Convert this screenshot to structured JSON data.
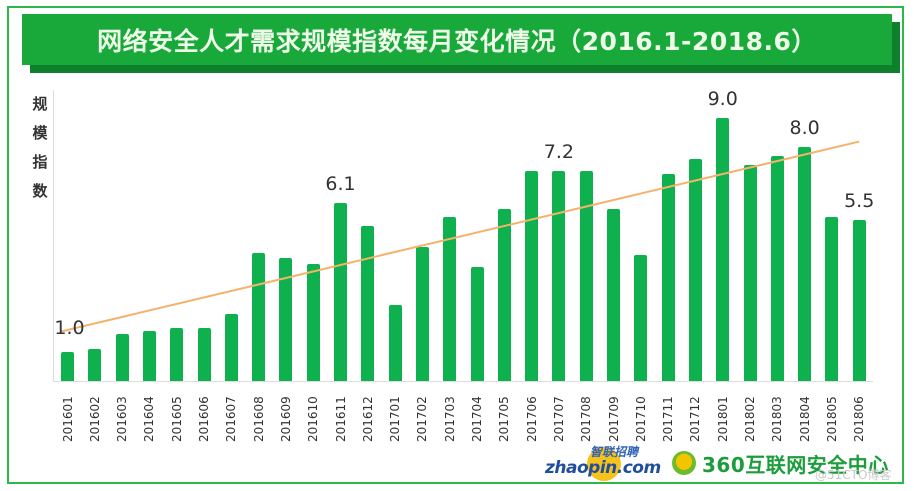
{
  "title": "网络安全人才需求规模指数每月变化情况（2016.1-2018.6）",
  "y_axis_label_chars": [
    "规",
    "模",
    "指",
    "数"
  ],
  "colors": {
    "bar": "#0fb14f",
    "trendline": "#f5b26b",
    "banner": "#18a93a",
    "banner_shadow": "#0e7f2a",
    "frame": "#2fb84a"
  },
  "logos": {
    "zhaopin_cn": "智联招聘",
    "zhaopin_en": "zhaopin.com",
    "center_360": "360互联网安全中心"
  },
  "watermark": "@51CTO博客",
  "chart_data": {
    "type": "bar",
    "title": "网络安全人才需求规模指数每月变化情况（2016.1-2018.6）",
    "xlabel": "",
    "ylabel": "规模指数",
    "ylim": [
      0,
      10
    ],
    "grid": false,
    "legend": null,
    "categories": [
      "201601",
      "201602",
      "201603",
      "201604",
      "201605",
      "201606",
      "201607",
      "201608",
      "201609",
      "201610",
      "201611",
      "201612",
      "201701",
      "201702",
      "201703",
      "201704",
      "201705",
      "201706",
      "201707",
      "201708",
      "201709",
      "201710",
      "201711",
      "201712",
      "201801",
      "201802",
      "201803",
      "201804",
      "201805",
      "201806"
    ],
    "values": [
      1.0,
      1.1,
      1.6,
      1.7,
      1.8,
      1.8,
      2.3,
      4.4,
      4.2,
      4.0,
      6.1,
      5.3,
      2.6,
      4.6,
      5.6,
      3.9,
      5.9,
      7.2,
      7.2,
      7.2,
      5.9,
      4.3,
      7.1,
      7.6,
      9.0,
      7.4,
      7.7,
      8.0,
      5.6,
      5.5
    ],
    "annotations": [
      {
        "category": "201601",
        "text": "1.0"
      },
      {
        "category": "201611",
        "text": "6.1"
      },
      {
        "category": "201707",
        "text": "7.2"
      },
      {
        "category": "201801",
        "text": "9.0"
      },
      {
        "category": "201804",
        "text": "8.0"
      },
      {
        "category": "201806",
        "text": "5.5"
      }
    ],
    "trendline": {
      "type": "linear",
      "start": 1.7,
      "end": 8.2
    }
  }
}
